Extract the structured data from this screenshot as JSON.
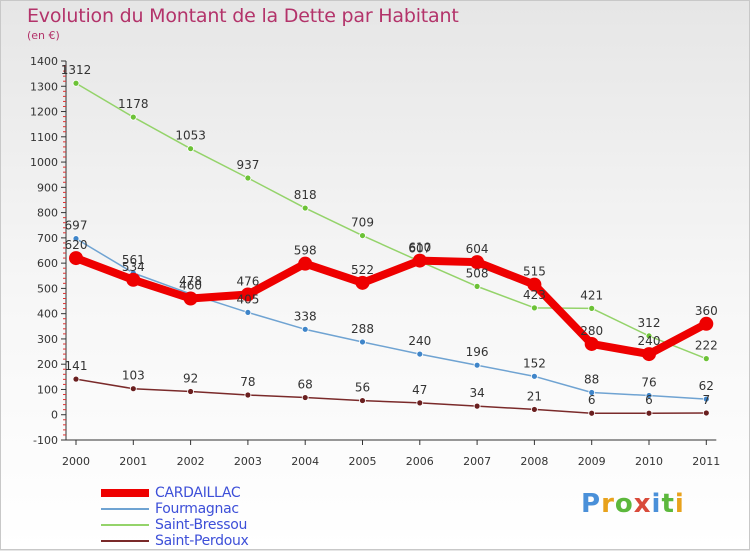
{
  "title": "Evolution du Montant de la Dette par Habitant",
  "subtitle": "(en €)",
  "logo": {
    "text": "Proxiti",
    "letter_colors": [
      "#4a90d9",
      "#e8a21c",
      "#5cb83c",
      "#d94a3a",
      "#4a90d9",
      "#5cb83c",
      "#e8a21c"
    ]
  },
  "chart_data": {
    "type": "line",
    "title": "Evolution du Montant de la Dette par Habitant",
    "ylabel": "(en €)",
    "xlabel": "",
    "x": [
      "2000",
      "2001",
      "2002",
      "2003",
      "2004",
      "2005",
      "2006",
      "2007",
      "2008",
      "2009",
      "2010",
      "2011"
    ],
    "ylim": [
      -100,
      1400
    ],
    "yticks": [
      -100,
      0,
      100,
      200,
      300,
      400,
      500,
      600,
      700,
      800,
      900,
      1000,
      1100,
      1200,
      1300,
      1400
    ],
    "grid": false,
    "legend_position": "bottom-left",
    "series": [
      {
        "name": "CARDAILLAC",
        "color": "#ee0000",
        "marker_color": "#ee0000",
        "emphasis": true,
        "values": [
          620,
          534,
          460,
          476,
          598,
          522,
          610,
          604,
          515,
          280,
          240,
          360
        ],
        "labels": [
          "620",
          "534",
          "460",
          "476",
          "598",
          "522",
          "610",
          "604",
          "515",
          "280",
          "240",
          "360"
        ]
      },
      {
        "name": "Fourmagnac",
        "color": "#6fa3d2",
        "marker_color": "#3f85c9",
        "values": [
          697,
          561,
          478,
          405,
          338,
          288,
          240,
          196,
          152,
          88,
          76,
          62
        ],
        "labels": [
          "697",
          "561",
          "478",
          "405",
          "338",
          "288",
          "240",
          "196",
          "152",
          "88",
          "76",
          "62"
        ]
      },
      {
        "name": "Saint-Bressou",
        "color": "#94d36a",
        "marker_color": "#6cc236",
        "values": [
          1312,
          1178,
          1053,
          937,
          818,
          709,
          607,
          508,
          423,
          421,
          312,
          222
        ],
        "labels": [
          "1312",
          "1178",
          "1053",
          "937",
          "818",
          "709",
          "607",
          "508",
          "423",
          "421",
          "312",
          "222"
        ]
      },
      {
        "name": "Saint-Perdoux",
        "color": "#7a2a2a",
        "marker_color": "#6a1f1f",
        "values": [
          141,
          103,
          92,
          78,
          68,
          56,
          47,
          34,
          21,
          6,
          6,
          7
        ],
        "labels": [
          "141",
          "103",
          "92",
          "78",
          "68",
          "56",
          "47",
          "34",
          "21",
          "6",
          "6",
          "7"
        ]
      }
    ]
  }
}
